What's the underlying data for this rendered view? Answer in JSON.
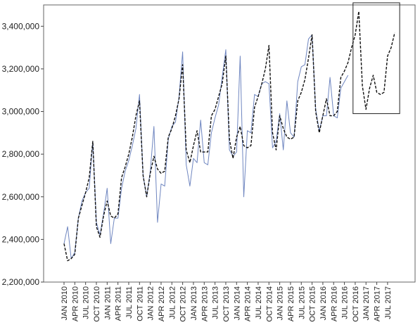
{
  "chart_data": {
    "type": "line",
    "title": "",
    "xlabel": "",
    "ylabel": "",
    "ylim": [
      2200000,
      3500000
    ],
    "yticks": [
      2200000,
      2400000,
      2600000,
      2800000,
      3000000,
      3200000,
      3400000
    ],
    "ytick_labels": [
      "2,200,000",
      "2,400,000",
      "2,600,000",
      "2,800,000",
      "3,000,000",
      "3,200,000",
      "3,400,000"
    ],
    "x_tick_labels": [
      "JAN 2010",
      "APR 2010",
      "JUL 2010",
      "OCT 2010",
      "JAN 2011",
      "APR 2011",
      "JUL 2011",
      "OCT 2011",
      "JAN 2012",
      "APR 2012",
      "JUL 2012",
      "OCT 2012",
      "JAN 2013",
      "APR 2013",
      "JUL 2013",
      "OCT 2013",
      "JAN 2014",
      "APR 2014",
      "JUL 2014",
      "OCT 2014",
      "JAN 2015",
      "APR 2015",
      "JUL 2015",
      "OCT 2015",
      "JAN 2016",
      "APR 2016",
      "JUL 2016",
      "OCT 2016",
      "JAN 2017",
      "APR 2017",
      "JUL 2017"
    ],
    "grid": false,
    "legend": "none",
    "colors": {
      "actual": "#6f86c0",
      "fitted": "#111111",
      "box": "#222222"
    },
    "series": [
      {
        "style": "solid",
        "color": "#6f86c0",
        "values": [
          2380000,
          2460000,
          2310000,
          2340000,
          2500000,
          2580000,
          2620000,
          2640000,
          2860000,
          2480000,
          2420000,
          2520000,
          2640000,
          2380000,
          2500000,
          2500000,
          2640000,
          2720000,
          2770000,
          2840000,
          2920000,
          3080000,
          2700000,
          2600000,
          2720000,
          2930000,
          2480000,
          2660000,
          2650000,
          2870000,
          2930000,
          2950000,
          3070000,
          3280000,
          2750000,
          2650000,
          2780000,
          2760000,
          2960000,
          2760000,
          2750000,
          2900000,
          2970000,
          3030000,
          3160000,
          3290000,
          2820000,
          2790000,
          2810000,
          3260000,
          2600000,
          2910000,
          2900000,
          3080000,
          3070000,
          3130000,
          3140000,
          3130000,
          2830000,
          2860000,
          2990000,
          2820000,
          3050000,
          2900000,
          2880000,
          3140000,
          3210000,
          3220000,
          3340000,
          3360000,
          3010000,
          2910000,
          2980000,
          2980000,
          3160000,
          2980000,
          2970000,
          3110000,
          3140000,
          3170000
        ]
      },
      {
        "style": "dashed",
        "color": "#111111",
        "values": [
          2380000,
          2300000,
          2310000,
          2330000,
          2500000,
          2560000,
          2620000,
          2690000,
          2860000,
          2460000,
          2410000,
          2510000,
          2580000,
          2510000,
          2500000,
          2520000,
          2690000,
          2740000,
          2800000,
          2880000,
          2980000,
          3050000,
          2700000,
          2600000,
          2710000,
          2790000,
          2730000,
          2710000,
          2720000,
          2880000,
          2920000,
          2980000,
          3060000,
          3220000,
          2820000,
          2760000,
          2840000,
          2910000,
          2810000,
          2810000,
          2810000,
          2980000,
          3010000,
          3070000,
          3130000,
          3260000,
          2870000,
          2780000,
          2880000,
          2930000,
          2840000,
          2830000,
          2840000,
          3020000,
          3070000,
          3130000,
          3200000,
          3310000,
          2900000,
          2820000,
          2980000,
          2920000,
          2880000,
          2870000,
          2880000,
          3050000,
          3090000,
          3150000,
          3250000,
          3360000,
          3000000,
          2900000,
          2980000,
          3060000,
          2980000,
          2980000,
          3000000,
          3160000,
          3190000,
          3230000,
          3300000,
          3360000,
          3470000,
          3120000,
          3010000,
          3110000,
          3170000,
          3090000,
          3080000,
          3090000,
          3260000,
          3300000,
          3370000
        ]
      }
    ],
    "box": {
      "x_index_start": 80,
      "x_index_end": 92,
      "y_min": 2990000,
      "y_max": 3510000
    }
  }
}
